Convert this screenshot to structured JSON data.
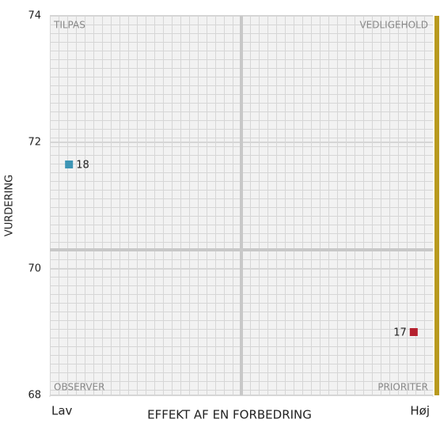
{
  "chart_data": {
    "type": "scatter",
    "xlabel": "EFFEKT AF EN FORBEDRING",
    "ylabel": "VURDERING",
    "xlim": [
      0,
      10
    ],
    "xticks": [
      {
        "value": 0,
        "label": "Lav"
      },
      {
        "value": 10,
        "label": "Høj"
      }
    ],
    "ylim": [
      68,
      74
    ],
    "yticks": [
      68,
      70,
      72,
      74
    ],
    "quadrant_lines": {
      "x": 5,
      "y": 70.3
    },
    "quadrants": {
      "top_left": "TILPAS",
      "top_right": "VEDLIGEHOLD",
      "bottom_left": "OBSERVER",
      "bottom_right": "PRIORITER"
    },
    "points": [
      {
        "label": "18",
        "x": 0.5,
        "y": 71.65,
        "color": "#3d95b5"
      },
      {
        "label": "17",
        "x": 9.5,
        "y": 69.0,
        "color": "#b5202e"
      }
    ],
    "grid": true
  }
}
